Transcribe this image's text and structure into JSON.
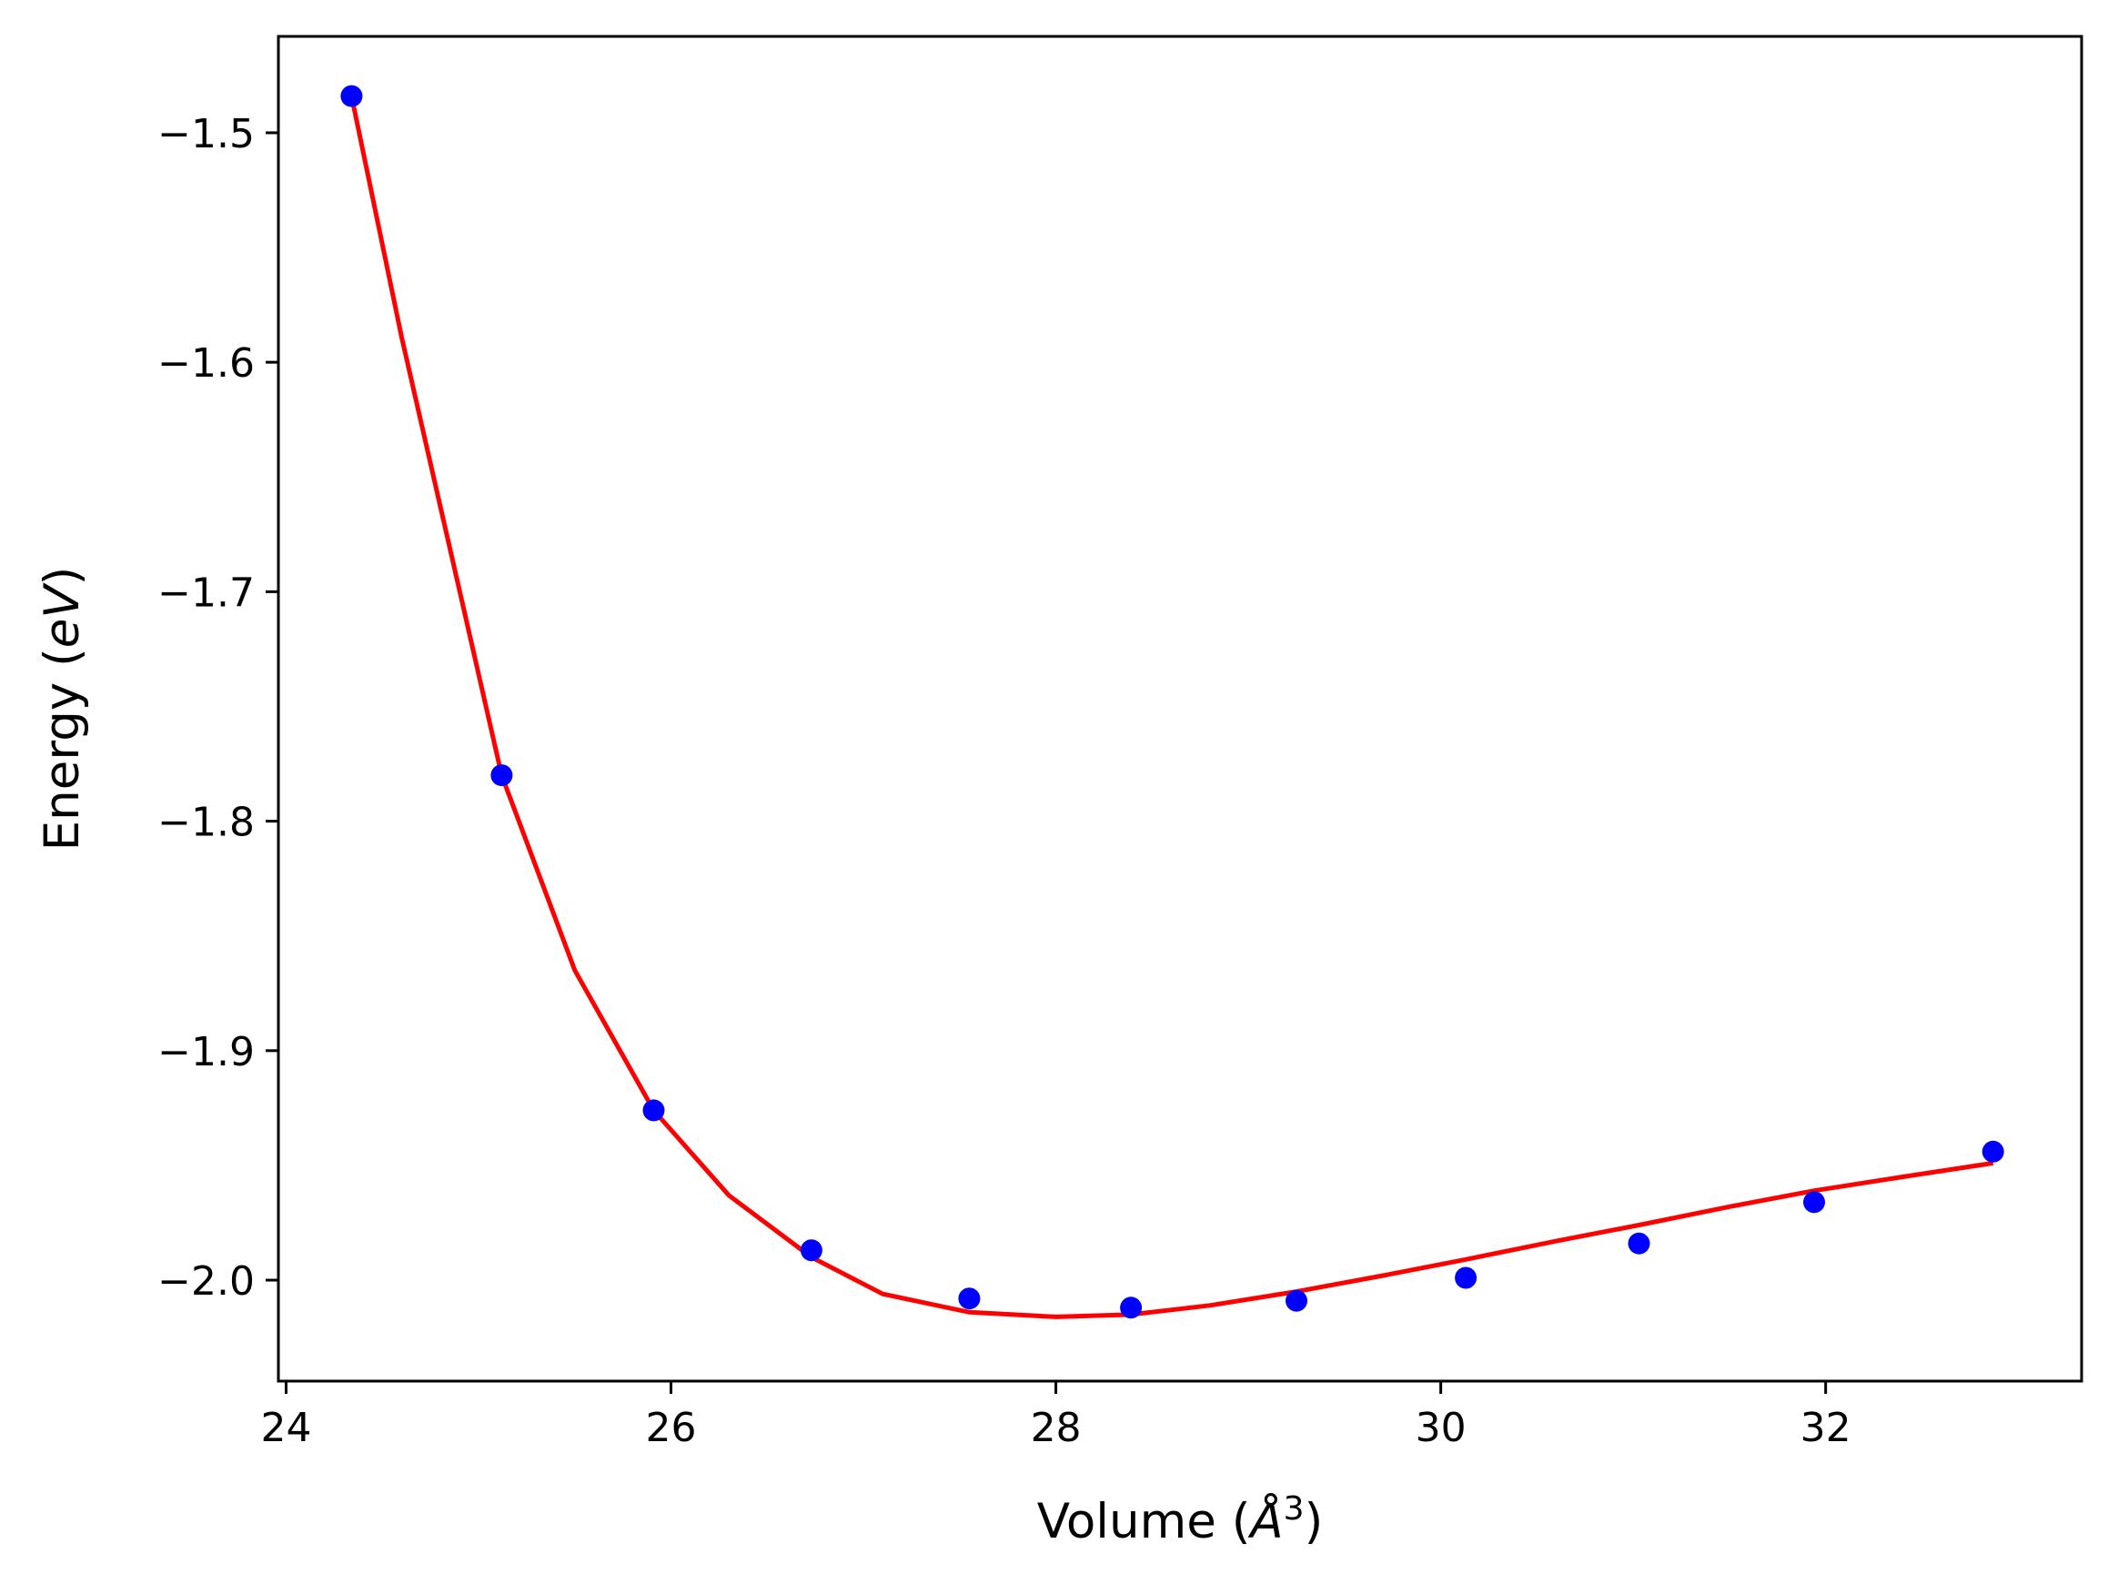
{
  "chart_data": {
    "type": "scatter",
    "xlabel": "Volume",
    "xlabel_unit": "Å",
    "xlabel_exponent": "3",
    "ylabel": "Energy",
    "ylabel_unit": "eV",
    "xlim": [
      23.96,
      33.33
    ],
    "ylim": [
      -2.044,
      -1.458
    ],
    "xticks": [
      24,
      26,
      28,
      30,
      32
    ],
    "xtick_labels": [
      "24",
      "26",
      "28",
      "30",
      "32"
    ],
    "yticks": [
      -1.5,
      -1.6,
      -1.7,
      -1.8,
      -1.9,
      -2.0
    ],
    "ytick_labels": [
      "−1.5",
      "−1.6",
      "−1.7",
      "−1.8",
      "−1.9",
      "−2.0"
    ],
    "grid": false,
    "series": [
      {
        "kind": "points",
        "color": "#0000ff",
        "x": [
          24.34,
          25.12,
          25.91,
          26.73,
          27.55,
          28.39,
          29.25,
          30.13,
          31.03,
          31.94,
          32.87
        ],
        "y": [
          -1.484,
          -1.78,
          -1.926,
          -1.987,
          -2.008,
          -2.012,
          -2.009,
          -1.999,
          -1.984,
          -1.966,
          -1.944
        ]
      },
      {
        "kind": "fit-line",
        "color": "#ff0000",
        "x": [
          24.34,
          24.6,
          24.9,
          25.12,
          25.5,
          25.91,
          26.3,
          26.73,
          27.1,
          27.55,
          28.0,
          28.39,
          28.8,
          29.25,
          29.7,
          30.13,
          30.6,
          31.03,
          31.5,
          31.94,
          32.4,
          32.87
        ],
        "y": [
          -1.484,
          -1.589,
          -1.699,
          -1.78,
          -1.865,
          -1.926,
          -1.963,
          -1.99,
          -2.006,
          -2.014,
          -2.016,
          -2.015,
          -2.011,
          -2.005,
          -1.998,
          -1.991,
          -1.983,
          -1.976,
          -1.968,
          -1.961,
          -1.955,
          -1.949
        ]
      }
    ]
  }
}
